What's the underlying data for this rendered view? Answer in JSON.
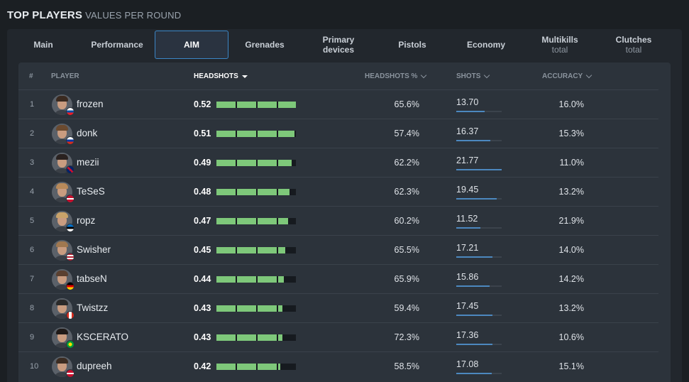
{
  "header": {
    "title": "TOP PLAYERS",
    "subtitle": "VALUES PER ROUND"
  },
  "tabs": [
    {
      "label": "Main",
      "sub": ""
    },
    {
      "label": "Performance",
      "sub": ""
    },
    {
      "label": "AIM",
      "sub": ""
    },
    {
      "label": "Grenades",
      "sub": ""
    },
    {
      "label": "Primary",
      "sub": "devices"
    },
    {
      "label": "Pistols",
      "sub": ""
    },
    {
      "label": "Economy",
      "sub": ""
    },
    {
      "label": "Multikills",
      "sub": "total"
    },
    {
      "label": "Clutches",
      "sub": "total"
    }
  ],
  "active_tab": "AIM",
  "columns": {
    "rank": "#",
    "player": "PLAYER",
    "headshots": "HEADSHOTS",
    "headshots_pct": "HEADSHOTS %",
    "shots": "SHOTS",
    "accuracy": "ACCURACY"
  },
  "colors": {
    "bar": "#7ec87a",
    "accent": "#3b86c6",
    "shots_bar": "#4c88bf"
  },
  "rows": [
    {
      "rank": "1",
      "name": "frozen",
      "headshots": "0.52",
      "headshots_pct": "65.6%",
      "shots": "13.70",
      "accuracy": "16.0%",
      "flag": "slovakia-flag-icon"
    },
    {
      "rank": "2",
      "name": "donk",
      "headshots": "0.51",
      "headshots_pct": "57.4%",
      "shots": "16.37",
      "accuracy": "15.3%",
      "flag": "russia-flag-icon"
    },
    {
      "rank": "3",
      "name": "mezii",
      "headshots": "0.49",
      "headshots_pct": "62.2%",
      "shots": "21.77",
      "accuracy": "11.0%",
      "flag": "uk-flag-icon"
    },
    {
      "rank": "4",
      "name": "TeSeS",
      "headshots": "0.48",
      "headshots_pct": "62.3%",
      "shots": "19.45",
      "accuracy": "13.2%",
      "flag": "denmark-flag-icon"
    },
    {
      "rank": "5",
      "name": "ropz",
      "headshots": "0.47",
      "headshots_pct": "60.2%",
      "shots": "11.52",
      "accuracy": "21.9%",
      "flag": "estonia-flag-icon"
    },
    {
      "rank": "6",
      "name": "Swisher",
      "headshots": "0.45",
      "headshots_pct": "65.5%",
      "shots": "17.21",
      "accuracy": "14.0%",
      "flag": "usa-flag-icon"
    },
    {
      "rank": "7",
      "name": "tabseN",
      "headshots": "0.44",
      "headshots_pct": "65.9%",
      "shots": "15.86",
      "accuracy": "14.2%",
      "flag": "germany-flag-icon"
    },
    {
      "rank": "8",
      "name": "Twistzz",
      "headshots": "0.43",
      "headshots_pct": "59.4%",
      "shots": "17.45",
      "accuracy": "13.2%",
      "flag": "canada-flag-icon"
    },
    {
      "rank": "9",
      "name": "KSCERATO",
      "headshots": "0.43",
      "headshots_pct": "72.3%",
      "shots": "17.36",
      "accuracy": "10.6%",
      "flag": "brazil-flag-icon"
    },
    {
      "rank": "10",
      "name": "dupreeh",
      "headshots": "0.42",
      "headshots_pct": "58.5%",
      "shots": "17.08",
      "accuracy": "15.1%",
      "flag": "denmark-flag-icon"
    }
  ]
}
